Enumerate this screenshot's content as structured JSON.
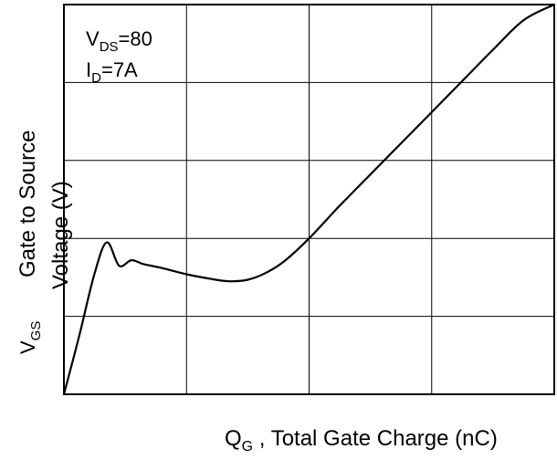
{
  "chart_data": {
    "type": "line",
    "title": "",
    "xlabel": {
      "main": "Q",
      "sub": "G",
      "rest": " , Total Gate Charge (nC)"
    },
    "ylabel": {
      "main": "V",
      "sub": "GS",
      "line1": "Gate to Source",
      "line2": "Voltage (V)"
    },
    "annotations": {
      "vds_main": "V",
      "vds_sub": "DS",
      "vds_value": "=80",
      "id_main": "I",
      "id_sub": "D",
      "id_value": "=7A"
    },
    "xlim": [
      0,
      8
    ],
    "ylim": [
      0,
      5
    ],
    "grid": true,
    "x_gridlines": [
      0,
      2,
      4,
      6,
      8
    ],
    "y_gridlines": [
      0,
      1,
      2,
      3,
      4,
      5
    ],
    "series": [
      {
        "values": [
          [
            0.0,
            0.0
          ],
          [
            0.25,
            0.75
          ],
          [
            0.5,
            1.55
          ],
          [
            0.7,
            1.95
          ],
          [
            0.9,
            1.65
          ],
          [
            1.1,
            1.72
          ],
          [
            1.3,
            1.67
          ],
          [
            1.6,
            1.62
          ],
          [
            2.0,
            1.54
          ],
          [
            2.4,
            1.48
          ],
          [
            2.7,
            1.45
          ],
          [
            3.0,
            1.47
          ],
          [
            3.3,
            1.56
          ],
          [
            3.6,
            1.71
          ],
          [
            4.0,
            2.0
          ],
          [
            4.5,
            2.42
          ],
          [
            5.0,
            2.82
          ],
          [
            5.5,
            3.22
          ],
          [
            6.0,
            3.62
          ],
          [
            6.5,
            4.02
          ],
          [
            7.0,
            4.42
          ],
          [
            7.5,
            4.8
          ],
          [
            8.0,
            5.0
          ]
        ]
      }
    ],
    "colors": {
      "line": "#000000",
      "grid": "#000000",
      "background": "#ffffff"
    }
  }
}
